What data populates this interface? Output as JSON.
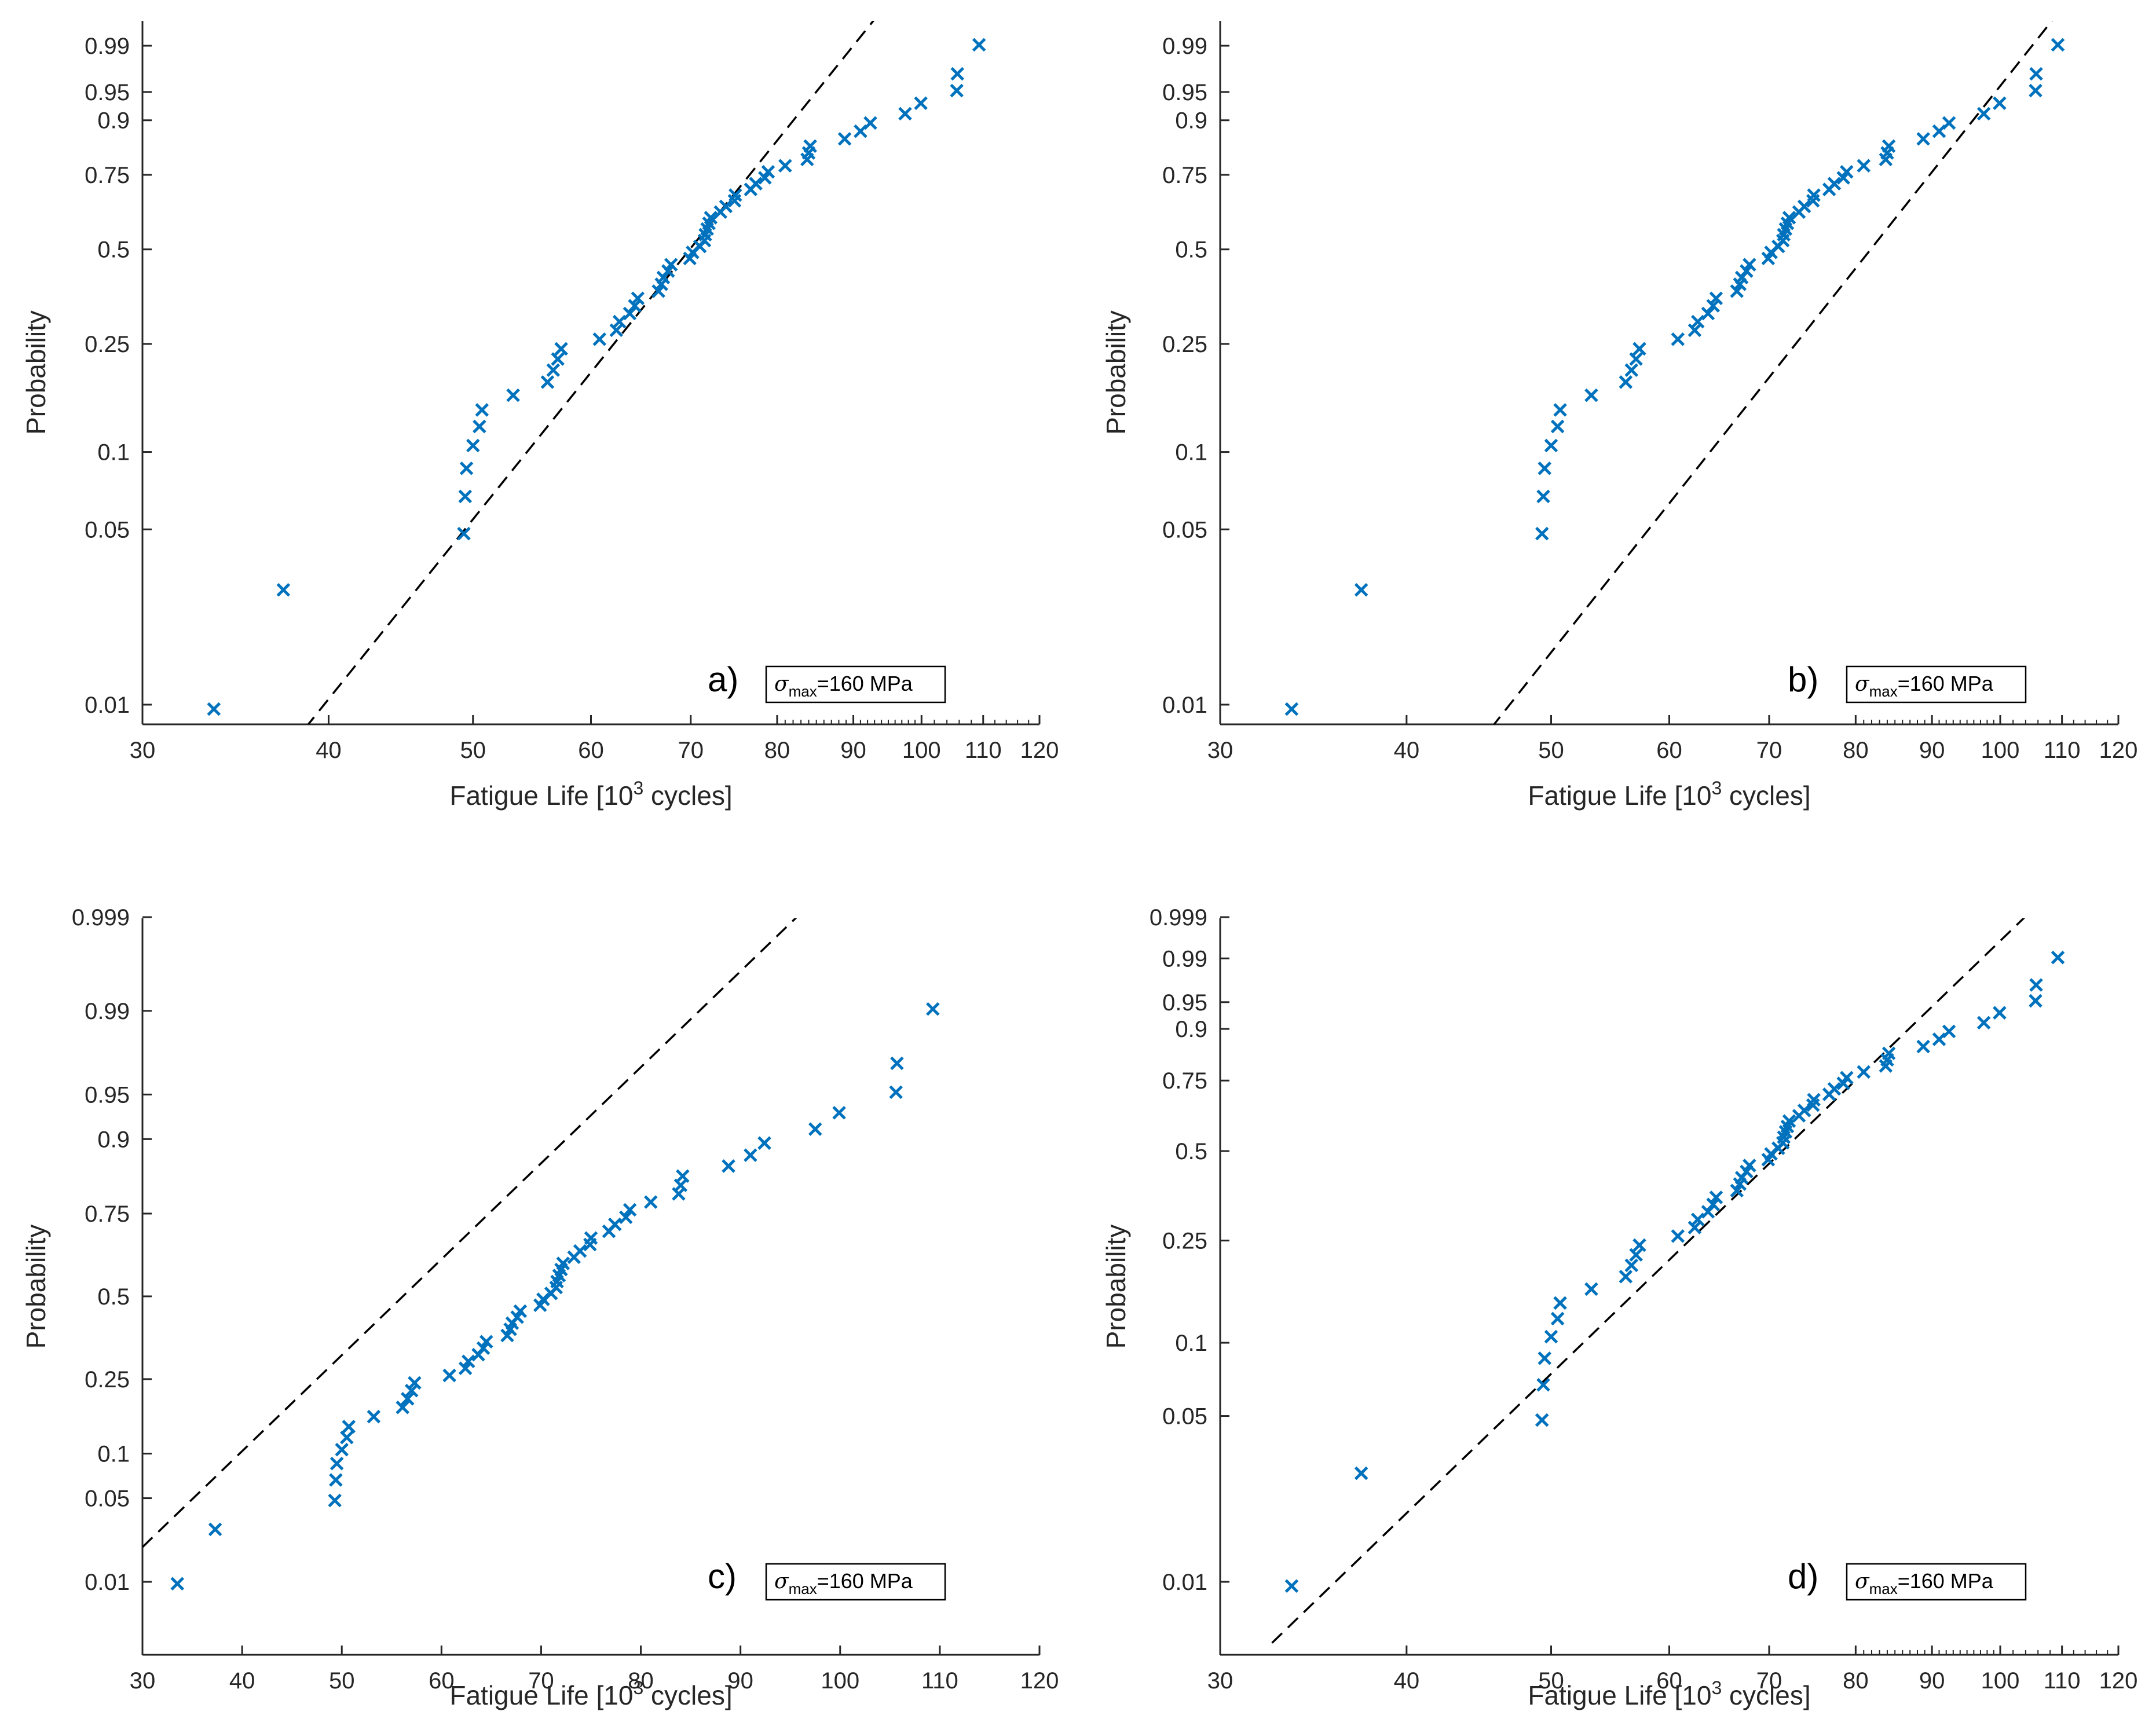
{
  "colors": {
    "marker": "#0072BD",
    "fit_line": "#000000",
    "axis": "#262626"
  },
  "chart_data": [
    {
      "type": "scatter",
      "panel_label": "a)",
      "annotation": {
        "symbol": "σ",
        "subscript": "max",
        "value": "=160 MPa"
      },
      "xlabel": "Fatigue Life [10",
      "xlabel_sup": "3",
      "xlabel_end": " cycles]",
      "ylabel": "Probability",
      "x_scale": "log",
      "xlim": [
        30,
        120
      ],
      "x_ticks": [
        30,
        40,
        50,
        60,
        70,
        80,
        90,
        100,
        110,
        120
      ],
      "x_tick_labels": [
        "30",
        "40",
        "50",
        "60",
        "70",
        "80",
        "90",
        "100",
        "110",
        "120"
      ],
      "y_scale": "probability",
      "y_ticks": [
        0.01,
        0.05,
        0.1,
        0.25,
        0.5,
        0.75,
        0.9,
        0.95,
        0.99
      ],
      "y_tick_labels": [
        "0.01",
        "0.05",
        "0.1",
        "0.25",
        "0.5",
        "0.75",
        "0.9",
        "0.95",
        "0.99"
      ],
      "fit_line": {
        "style": "dashed",
        "points": [
          [
            36.2,
            0.005
          ],
          [
            95.0,
            0.999
          ]
        ]
      }
    },
    {
      "type": "scatter",
      "panel_label": "b)",
      "annotation": {
        "symbol": "σ",
        "subscript": "max",
        "value": "=160 MPa"
      },
      "xlabel": "Fatigue Life [10",
      "xlabel_sup": "3",
      "xlabel_end": " cycles]",
      "ylabel": "Probability",
      "x_scale": "log",
      "xlim": [
        30,
        120
      ],
      "x_ticks": [
        30,
        40,
        50,
        60,
        70,
        80,
        90,
        100,
        110,
        120
      ],
      "x_tick_labels": [
        "30",
        "40",
        "50",
        "60",
        "70",
        "80",
        "90",
        "100",
        "110",
        "120"
      ],
      "y_scale": "probability",
      "y_ticks": [
        0.01,
        0.05,
        0.1,
        0.25,
        0.5,
        0.75,
        0.9,
        0.95,
        0.99
      ],
      "y_tick_labels": [
        "0.01",
        "0.05",
        "0.1",
        "0.25",
        "0.5",
        "0.75",
        "0.9",
        "0.95",
        "0.99"
      ],
      "fit_line": {
        "style": "dashed",
        "points": [
          [
            42.8,
            0.005
          ],
          [
            110.8,
            0.999
          ]
        ]
      }
    },
    {
      "type": "scatter",
      "panel_label": "c)",
      "annotation": {
        "symbol": "σ",
        "subscript": "max",
        "value": "=160 MPa"
      },
      "xlabel": "Fatigue Life [10",
      "xlabel_sup": "3",
      "xlabel_end": " cycles]",
      "ylabel": "Probability",
      "x_scale": "linear",
      "xlim": [
        30,
        120
      ],
      "x_ticks": [
        30,
        40,
        50,
        60,
        70,
        80,
        90,
        100,
        110,
        120
      ],
      "x_tick_labels": [
        "30",
        "40",
        "50",
        "60",
        "70",
        "80",
        "90",
        "100",
        "110",
        "120"
      ],
      "y_scale": "probability",
      "y_ticks": [
        0.01,
        0.05,
        0.1,
        0.25,
        0.5,
        0.75,
        0.9,
        0.95,
        0.99,
        0.999
      ],
      "y_tick_labels": [
        "0.01",
        "0.05",
        "0.1",
        "0.25",
        "0.5",
        "0.75",
        "0.9",
        "0.95",
        "0.99",
        "0.999"
      ],
      "fit_line": {
        "style": "dashed",
        "points": [
          [
            30.0,
            0.0205
          ],
          [
            99.0,
            0.9996
          ]
        ]
      }
    },
    {
      "type": "scatter",
      "panel_label": "d)",
      "annotation": {
        "symbol": "σ",
        "subscript": "max",
        "value": "=160 MPa"
      },
      "xlabel": "Fatigue Life [10",
      "xlabel_sup": "3",
      "xlabel_end": " cycles]",
      "ylabel": "Probability",
      "x_scale": "log",
      "xlim": [
        30,
        120
      ],
      "x_ticks": [
        30,
        40,
        50,
        60,
        70,
        80,
        90,
        100,
        110,
        120
      ],
      "x_tick_labels": [
        "30",
        "40",
        "50",
        "60",
        "70",
        "80",
        "90",
        "100",
        "110",
        "120"
      ],
      "y_scale": "probability",
      "y_ticks": [
        0.01,
        0.05,
        0.1,
        0.25,
        0.5,
        0.75,
        0.9,
        0.95,
        0.99,
        0.999
      ],
      "y_tick_labels": [
        "0.01",
        "0.05",
        "0.1",
        "0.25",
        "0.5",
        "0.75",
        "0.9",
        "0.95",
        "0.99",
        "0.999"
      ],
      "fit_line": {
        "style": "dashed",
        "points": [
          [
            32.5,
            0.0055
          ],
          [
            106.0,
            0.9996
          ]
        ]
      }
    }
  ],
  "observations": {
    "x": [
      33.5,
      37.3,
      49.3,
      49.4,
      49.5,
      50.0,
      50.5,
      50.7,
      53.2,
      56.1,
      56.6,
      57.0,
      57.3,
      60.8,
      62.4,
      62.7,
      63.7,
      64.2,
      64.5,
      66.6,
      66.9,
      67.1,
      67.6,
      67.9,
      69.9,
      70.2,
      71.0,
      71.5,
      71.6,
      71.8,
      72.0,
      72.2,
      73.3,
      73.9,
      74.9,
      75.0,
      76.8,
      77.4,
      78.5,
      78.9,
      81.0,
      83.8,
      84.0,
      84.2,
      88.8,
      91.0,
      92.4,
      97.5,
      99.9,
      105.6,
      105.7,
      109.3
    ],
    "probability": [
      0.0096,
      0.0288,
      0.0481,
      0.0673,
      0.0865,
      0.1058,
      0.125,
      0.1442,
      0.1635,
      0.1827,
      0.2019,
      0.2212,
      0.2404,
      0.2596,
      0.2788,
      0.2981,
      0.3173,
      0.3365,
      0.3558,
      0.375,
      0.3942,
      0.4135,
      0.4327,
      0.4519,
      0.4712,
      0.4904,
      0.5096,
      0.5288,
      0.5481,
      0.5673,
      0.5865,
      0.6058,
      0.625,
      0.6442,
      0.6635,
      0.6827,
      0.7019,
      0.7212,
      0.7404,
      0.7596,
      0.7788,
      0.7981,
      0.8173,
      0.8365,
      0.8558,
      0.875,
      0.8942,
      0.9135,
      0.9327,
      0.9519,
      0.9712,
      0.9904
    ]
  }
}
